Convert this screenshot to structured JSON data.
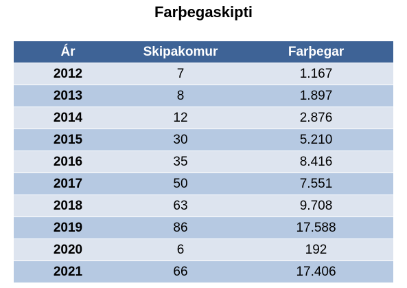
{
  "title": "Farþegaskipti",
  "columns": [
    "Ár",
    "Skipakomur",
    "Farþegar"
  ],
  "rows": [
    {
      "year": "2012",
      "arrivals": "7",
      "passengers": "1.167"
    },
    {
      "year": "2013",
      "arrivals": "8",
      "passengers": "1.897"
    },
    {
      "year": "2014",
      "arrivals": "12",
      "passengers": "2.876"
    },
    {
      "year": "2015",
      "arrivals": "30",
      "passengers": "5.210"
    },
    {
      "year": "2016",
      "arrivals": "35",
      "passengers": "8.416"
    },
    {
      "year": "2017",
      "arrivals": "50",
      "passengers": "7.551"
    },
    {
      "year": "2018",
      "arrivals": "63",
      "passengers": "9.708"
    },
    {
      "year": "2019",
      "arrivals": "86",
      "passengers": "17.588"
    },
    {
      "year": "2020",
      "arrivals": "6",
      "passengers": "192"
    },
    {
      "year": "2021",
      "arrivals": "66",
      "passengers": "17.406"
    }
  ],
  "colors": {
    "header": "#3e6396",
    "row_light": "#dde4ef",
    "row_dark": "#b6c9e2"
  }
}
